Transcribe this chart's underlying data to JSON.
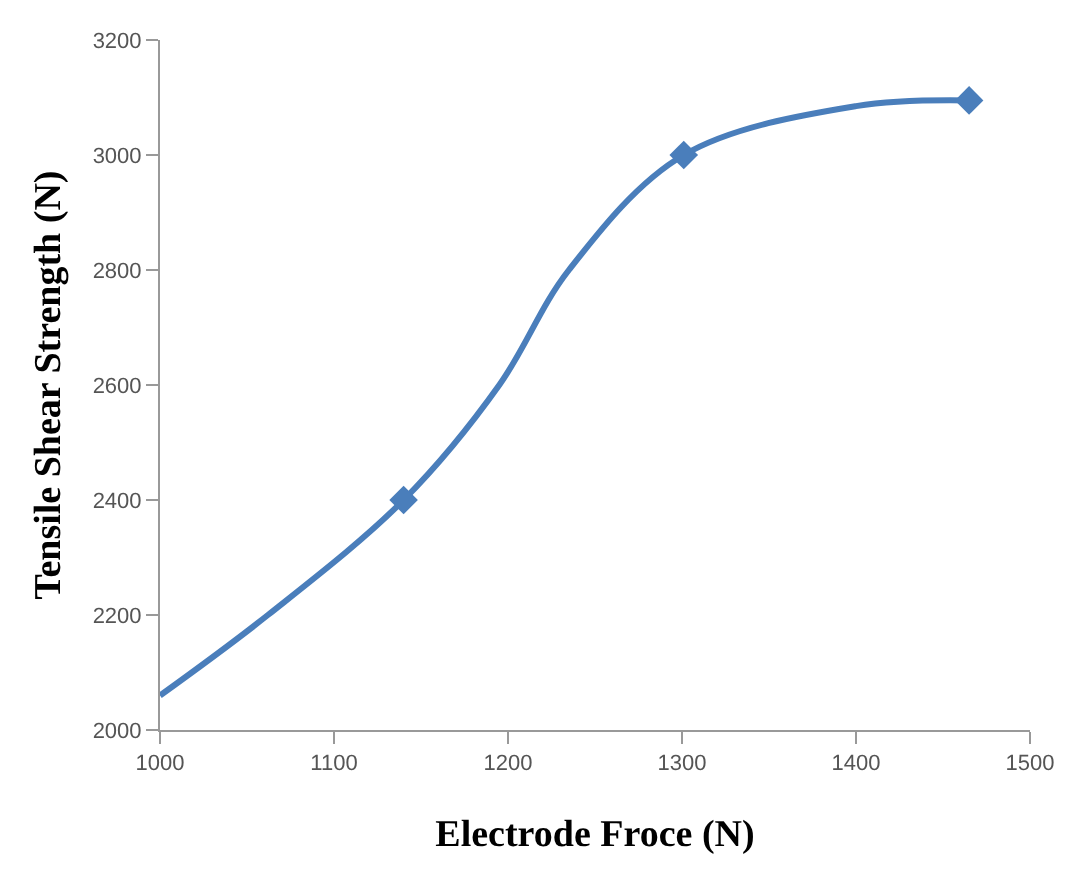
{
  "chart_data": {
    "type": "line",
    "xlabel": "Electrode Froce (N)",
    "ylabel": "Tensile Shear Strength (N)",
    "series": [
      {
        "color": "#4a7ebb",
        "marker": "none",
        "x": [
          1000,
          1062,
          1140,
          1195,
          1235,
          1301,
          1400,
          1465
        ],
        "values": [
          2060,
          2200,
          2400,
          2600,
          2800,
          3000,
          3085,
          3095
        ]
      },
      {
        "type": "scatter",
        "color": "#4a7ebb",
        "marker": "diamond",
        "x": [
          1140,
          1301,
          1465
        ],
        "values": [
          2400,
          3000,
          3095
        ]
      }
    ],
    "xlim": [
      1000,
      1500
    ],
    "xticks": [
      1000,
      1100,
      1200,
      1300,
      1400,
      1500
    ],
    "ylim": [
      2000,
      3200
    ],
    "yticks": [
      2000,
      2200,
      2400,
      2600,
      2800,
      3000,
      3200
    ]
  }
}
